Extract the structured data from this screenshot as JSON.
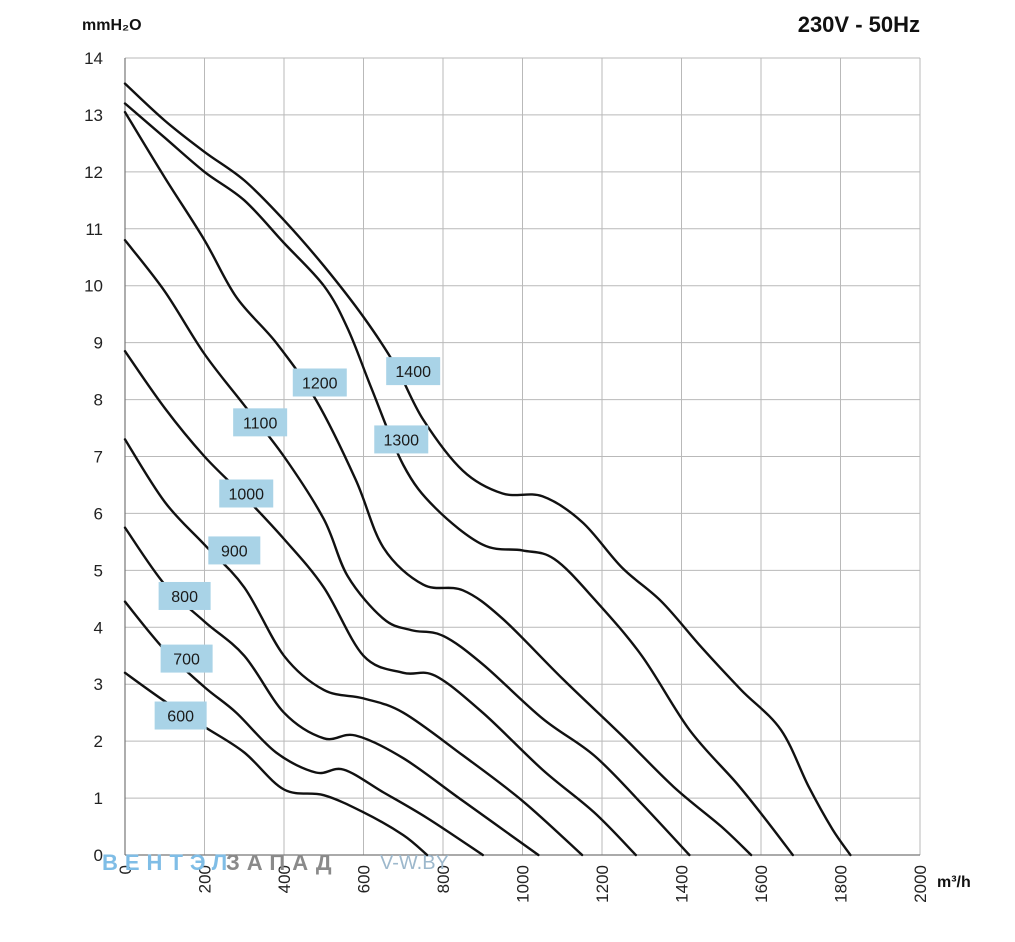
{
  "chart_data": {
    "type": "line",
    "title": "230V - 50Hz",
    "ylabel": "mmH₂O",
    "xlabel": "m³/h",
    "xlim": [
      0,
      2000
    ],
    "ylim": [
      0,
      14
    ],
    "x_ticks": [
      "0",
      "200",
      "400",
      "600",
      "800",
      "1000",
      "1200",
      "1400",
      "1600",
      "1800",
      "2000"
    ],
    "y_ticks": [
      "0",
      "1",
      "2",
      "3",
      "4",
      "5",
      "6",
      "7",
      "8",
      "9",
      "10",
      "11",
      "12",
      "13",
      "14"
    ],
    "grid": true,
    "series": [
      {
        "name": "600",
        "points": [
          [
            0,
            3.2
          ],
          [
            100,
            2.7
          ],
          [
            200,
            2.25
          ],
          [
            300,
            1.8
          ],
          [
            400,
            1.15
          ],
          [
            500,
            1.05
          ],
          [
            600,
            0.75
          ],
          [
            700,
            0.35
          ],
          [
            760,
            0
          ]
        ]
      },
      {
        "name": "700",
        "points": [
          [
            0,
            4.45
          ],
          [
            100,
            3.6
          ],
          [
            200,
            2.95
          ],
          [
            280,
            2.5
          ],
          [
            380,
            1.8
          ],
          [
            480,
            1.45
          ],
          [
            550,
            1.5
          ],
          [
            650,
            1.1
          ],
          [
            760,
            0.65
          ],
          [
            900,
            0
          ]
        ]
      },
      {
        "name": "800",
        "points": [
          [
            0,
            5.75
          ],
          [
            100,
            4.75
          ],
          [
            200,
            4.1
          ],
          [
            300,
            3.5
          ],
          [
            400,
            2.5
          ],
          [
            500,
            2.05
          ],
          [
            580,
            2.1
          ],
          [
            700,
            1.7
          ],
          [
            850,
            0.95
          ],
          [
            1040,
            0
          ]
        ]
      },
      {
        "name": "900",
        "points": [
          [
            0,
            7.3
          ],
          [
            100,
            6.2
          ],
          [
            200,
            5.45
          ],
          [
            300,
            4.7
          ],
          [
            400,
            3.5
          ],
          [
            500,
            2.9
          ],
          [
            600,
            2.75
          ],
          [
            700,
            2.5
          ],
          [
            850,
            1.75
          ],
          [
            1000,
            0.95
          ],
          [
            1150,
            0
          ]
        ]
      },
      {
        "name": "1000",
        "points": [
          [
            0,
            8.85
          ],
          [
            100,
            7.85
          ],
          [
            200,
            7.0
          ],
          [
            300,
            6.3
          ],
          [
            400,
            5.55
          ],
          [
            500,
            4.7
          ],
          [
            600,
            3.5
          ],
          [
            700,
            3.2
          ],
          [
            780,
            3.15
          ],
          [
            900,
            2.5
          ],
          [
            1050,
            1.5
          ],
          [
            1180,
            0.75
          ],
          [
            1285,
            0
          ]
        ]
      },
      {
        "name": "1100",
        "points": [
          [
            0,
            10.8
          ],
          [
            100,
            9.9
          ],
          [
            200,
            8.8
          ],
          [
            300,
            7.9
          ],
          [
            400,
            7.0
          ],
          [
            500,
            5.9
          ],
          [
            560,
            4.9
          ],
          [
            650,
            4.15
          ],
          [
            720,
            3.95
          ],
          [
            800,
            3.85
          ],
          [
            900,
            3.35
          ],
          [
            1050,
            2.4
          ],
          [
            1180,
            1.75
          ],
          [
            1300,
            0.9
          ],
          [
            1420,
            0
          ]
        ]
      },
      {
        "name": "1200",
        "points": [
          [
            0,
            13.05
          ],
          [
            100,
            11.9
          ],
          [
            200,
            10.8
          ],
          [
            280,
            9.8
          ],
          [
            380,
            9.0
          ],
          [
            480,
            8.0
          ],
          [
            580,
            6.6
          ],
          [
            650,
            5.4
          ],
          [
            750,
            4.75
          ],
          [
            850,
            4.65
          ],
          [
            950,
            4.15
          ],
          [
            1100,
            3.1
          ],
          [
            1250,
            2.1
          ],
          [
            1380,
            1.2
          ],
          [
            1500,
            0.5
          ],
          [
            1575,
            0
          ]
        ]
      },
      {
        "name": "1300",
        "points": [
          [
            0,
            13.2
          ],
          [
            100,
            12.6
          ],
          [
            200,
            12.0
          ],
          [
            300,
            11.5
          ],
          [
            400,
            10.75
          ],
          [
            500,
            10.0
          ],
          [
            560,
            9.25
          ],
          [
            620,
            8.2
          ],
          [
            700,
            6.85
          ],
          [
            780,
            6.1
          ],
          [
            900,
            5.45
          ],
          [
            1000,
            5.35
          ],
          [
            1080,
            5.2
          ],
          [
            1180,
            4.5
          ],
          [
            1300,
            3.5
          ],
          [
            1420,
            2.2
          ],
          [
            1540,
            1.25
          ],
          [
            1620,
            0.55
          ],
          [
            1680,
            0
          ]
        ]
      },
      {
        "name": "1400",
        "points": [
          [
            0,
            13.55
          ],
          [
            100,
            12.9
          ],
          [
            200,
            12.35
          ],
          [
            300,
            11.85
          ],
          [
            400,
            11.15
          ],
          [
            500,
            10.35
          ],
          [
            600,
            9.45
          ],
          [
            680,
            8.6
          ],
          [
            750,
            7.65
          ],
          [
            850,
            6.75
          ],
          [
            950,
            6.35
          ],
          [
            1050,
            6.3
          ],
          [
            1150,
            5.85
          ],
          [
            1250,
            5.05
          ],
          [
            1350,
            4.45
          ],
          [
            1450,
            3.65
          ],
          [
            1550,
            2.9
          ],
          [
            1650,
            2.2
          ],
          [
            1720,
            1.2
          ],
          [
            1780,
            0.45
          ],
          [
            1825,
            0
          ]
        ]
      }
    ],
    "labels": [
      {
        "text": "600",
        "x": 140,
        "y": 2.45
      },
      {
        "text": "700",
        "x": 155,
        "y": 3.45
      },
      {
        "text": "800",
        "x": 150,
        "y": 4.55
      },
      {
        "text": "900",
        "x": 275,
        "y": 5.35
      },
      {
        "text": "1000",
        "x": 305,
        "y": 6.35
      },
      {
        "text": "1100",
        "x": 340,
        "y": 7.6
      },
      {
        "text": "1200",
        "x": 490,
        "y": 8.3
      },
      {
        "text": "1300",
        "x": 695,
        "y": 7.3
      },
      {
        "text": "1400",
        "x": 725,
        "y": 8.5
      }
    ]
  },
  "watermark": {
    "part1": "ВЕНТЭЛ",
    "part2": "ЗАПАД",
    "part3": "V-W.BY"
  }
}
